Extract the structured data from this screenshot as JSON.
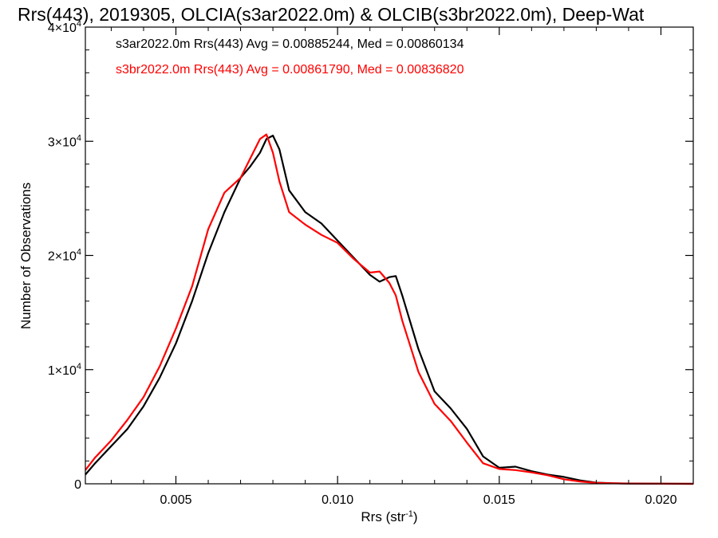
{
  "chart_data": {
    "type": "line",
    "title": "Rrs(443), 2019305, OLCIA(s3ar2022.0m) & OLCIB(s3br2022.0m), Deep-Wat",
    "xlabel_main": "Rrs (str",
    "xlabel_exp": "-1",
    "xlabel_close": ")",
    "ylabel": "Number of Observations",
    "xlim": [
      0.0022,
      0.021
    ],
    "ylim": [
      0,
      40000
    ],
    "x_ticks": [
      {
        "value": 0.005,
        "label": "0.005"
      },
      {
        "value": 0.01,
        "label": "0.010"
      },
      {
        "value": 0.015,
        "label": "0.015"
      },
      {
        "value": 0.02,
        "label": "0.020"
      }
    ],
    "y_ticks": [
      {
        "value": 0,
        "label": "0",
        "exp": ""
      },
      {
        "value": 10000,
        "label": "1×10",
        "exp": "4"
      },
      {
        "value": 20000,
        "label": "2×10",
        "exp": "4"
      },
      {
        "value": 30000,
        "label": "3×10",
        "exp": "4"
      },
      {
        "value": 40000,
        "label": "4×10",
        "exp": "4"
      }
    ],
    "legend": [
      {
        "text": "s3ar2022.0m Rrs(443) Avg = 0.00885244, Med = 0.00860134",
        "color": "#000000"
      },
      {
        "text": "s3br2022.0m Rrs(443) Avg = 0.00861790, Med = 0.00836820",
        "color": "#ff0000"
      }
    ],
    "series": [
      {
        "color": "#000000",
        "x": [
          0.0022,
          0.0025,
          0.003,
          0.0035,
          0.004,
          0.0045,
          0.005,
          0.0055,
          0.006,
          0.0065,
          0.007,
          0.0073,
          0.0076,
          0.0078,
          0.008,
          0.0082,
          0.0085,
          0.009,
          0.0095,
          0.01,
          0.0105,
          0.011,
          0.0113,
          0.0116,
          0.0118,
          0.012,
          0.0125,
          0.013,
          0.0135,
          0.014,
          0.0145,
          0.015,
          0.0155,
          0.016,
          0.0165,
          0.017,
          0.0175,
          0.018,
          0.0185,
          0.019,
          0.02,
          0.021
        ],
        "y": [
          800,
          1800,
          3300,
          4800,
          6800,
          9300,
          12300,
          16000,
          20200,
          23800,
          26800,
          27800,
          29000,
          30200,
          30500,
          29300,
          25700,
          23800,
          22800,
          21300,
          19800,
          18300,
          17700,
          18100,
          18200,
          16500,
          11800,
          8100,
          6600,
          4800,
          2400,
          1400,
          1500,
          1100,
          800,
          600,
          300,
          100,
          50,
          30,
          10,
          0
        ]
      },
      {
        "color": "#ff0000",
        "x": [
          0.0022,
          0.0025,
          0.003,
          0.0035,
          0.004,
          0.0045,
          0.005,
          0.0055,
          0.006,
          0.0065,
          0.007,
          0.0073,
          0.0076,
          0.0078,
          0.008,
          0.0082,
          0.0085,
          0.009,
          0.0095,
          0.01,
          0.0105,
          0.011,
          0.0113,
          0.0116,
          0.0118,
          0.012,
          0.0125,
          0.013,
          0.0135,
          0.014,
          0.0145,
          0.015,
          0.0155,
          0.016,
          0.0165,
          0.017,
          0.0175,
          0.018,
          0.0185,
          0.019,
          0.02,
          0.021
        ],
        "y": [
          1200,
          2300,
          3800,
          5600,
          7600,
          10300,
          13600,
          17300,
          22300,
          25500,
          26800,
          28500,
          30200,
          30600,
          29000,
          26500,
          23800,
          22700,
          21800,
          21100,
          19700,
          18500,
          18600,
          17600,
          16500,
          14300,
          9800,
          7000,
          5500,
          3600,
          1800,
          1300,
          1200,
          1000,
          750,
          400,
          200,
          80,
          40,
          20,
          5,
          0
        ]
      }
    ]
  }
}
